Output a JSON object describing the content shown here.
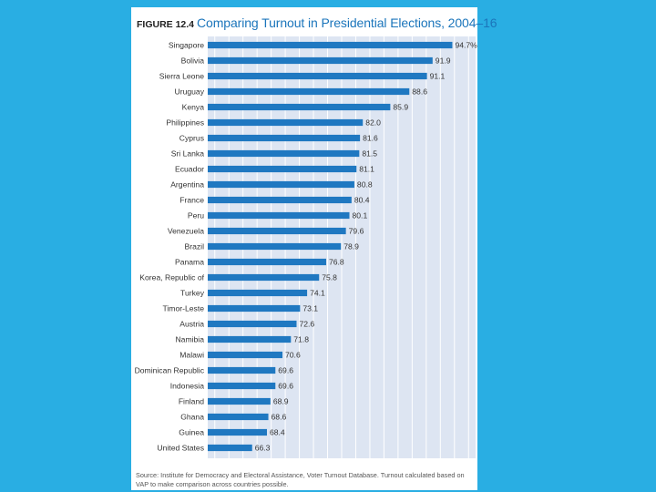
{
  "figure": {
    "label": "FIGURE 12.4",
    "heading": "Comparing Turnout in Presidential Elections, 2004–16",
    "source": "Source: Institute for Democracy and Electoral Assistance, Voter Turnout Database. Turnout calculated based on VAP to make comparison across countries possible."
  },
  "colors": {
    "background": "#29aee3",
    "bar": "#1f78c1",
    "plot_bg": "#dde5f2",
    "grid": "#ffffff",
    "title": "#1b75bb"
  },
  "chart_data": {
    "type": "bar",
    "orientation": "horizontal",
    "title": "Comparing Turnout in Presidential Elections, 2004–16",
    "xlabel": "",
    "ylabel": "",
    "xlim": [
      0,
      100
    ],
    "grid": true,
    "categories": [
      "Singapore",
      "Bolivia",
      "Sierra Leone",
      "Uruguay",
      "Kenya",
      "Philippines",
      "Cyprus",
      "Sri Lanka",
      "Ecuador",
      "Argentina",
      "France",
      "Peru",
      "Venezuela",
      "Brazil",
      "Panama",
      "Korea, Republic of",
      "Turkey",
      "Timor-Leste",
      "Austria",
      "Namibia",
      "Malawi",
      "Dominican Republic",
      "Indonesia",
      "Finland",
      "Ghana",
      "Guinea",
      "United States"
    ],
    "values": [
      94.7,
      91.9,
      91.1,
      88.6,
      85.9,
      82.0,
      81.6,
      81.5,
      81.1,
      80.8,
      80.4,
      80.1,
      79.6,
      78.9,
      76.8,
      75.8,
      74.1,
      73.1,
      72.6,
      71.8,
      70.6,
      69.6,
      69.6,
      68.9,
      68.6,
      68.4,
      66.3
    ],
    "data_labels": [
      "94.7%",
      "91.9",
      "91.1",
      "88.6",
      "85.9",
      "82.0",
      "81.6",
      "81.5",
      "81.1",
      "80.8",
      "80.4",
      "80.1",
      "79.6",
      "78.9",
      "76.8",
      "75.8",
      "74.1",
      "73.1",
      "72.6",
      "71.8",
      "70.6",
      "69.6",
      "69.6",
      "68.9",
      "68.6",
      "68.4",
      "66.3"
    ]
  }
}
